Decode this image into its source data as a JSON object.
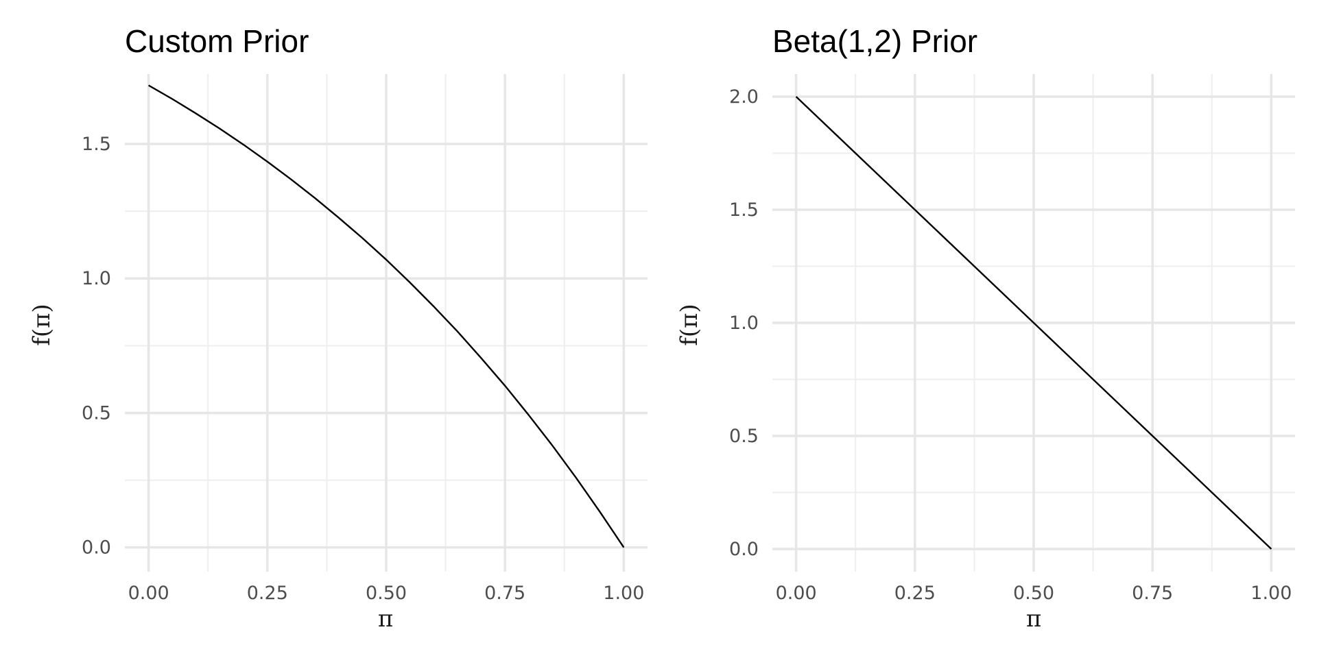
{
  "chart_data": [
    {
      "type": "line",
      "title": "Custom Prior",
      "xlabel": "π",
      "ylabel": "f(π)",
      "xlim": [
        -0.05,
        1.05
      ],
      "ylim": [
        -0.09,
        1.76
      ],
      "x_ticks": [
        0.0,
        0.25,
        0.5,
        0.75,
        1.0
      ],
      "x_tick_labels": [
        "0.00",
        "0.25",
        "0.50",
        "0.75",
        "1.00"
      ],
      "y_ticks": [
        0.0,
        0.5,
        1.0,
        1.5
      ],
      "y_tick_labels": [
        "0.0",
        "0.5",
        "1.0",
        "1.5"
      ],
      "grid": true,
      "series": [
        {
          "x": [
            0.0,
            0.05,
            0.1,
            0.15,
            0.2,
            0.25,
            0.3,
            0.35,
            0.4,
            0.45,
            0.5,
            0.55,
            0.6,
            0.65,
            0.7,
            0.75,
            0.8,
            0.85,
            0.9,
            0.95,
            1.0
          ],
          "y": [
            1.718,
            1.667,
            1.613,
            1.557,
            1.497,
            1.434,
            1.368,
            1.299,
            1.226,
            1.15,
            1.07,
            0.985,
            0.896,
            0.803,
            0.704,
            0.601,
            0.492,
            0.378,
            0.258,
            0.132,
            0.0
          ]
        }
      ]
    },
    {
      "type": "line",
      "title": "Beta(1,2) Prior",
      "xlabel": "π",
      "ylabel": "f(π)",
      "xlim": [
        -0.05,
        1.05
      ],
      "ylim": [
        -0.1,
        2.1
      ],
      "x_ticks": [
        0.0,
        0.25,
        0.5,
        0.75,
        1.0
      ],
      "x_tick_labels": [
        "0.00",
        "0.25",
        "0.50",
        "0.75",
        "1.00"
      ],
      "y_ticks": [
        0.0,
        0.5,
        1.0,
        1.5,
        2.0
      ],
      "y_tick_labels": [
        "0.0",
        "0.5",
        "1.0",
        "1.5",
        "2.0"
      ],
      "grid": true,
      "series": [
        {
          "x": [
            0.0,
            0.25,
            0.5,
            0.75,
            1.0
          ],
          "y": [
            2.0,
            1.5,
            1.0,
            0.5,
            0.0
          ]
        }
      ]
    }
  ]
}
